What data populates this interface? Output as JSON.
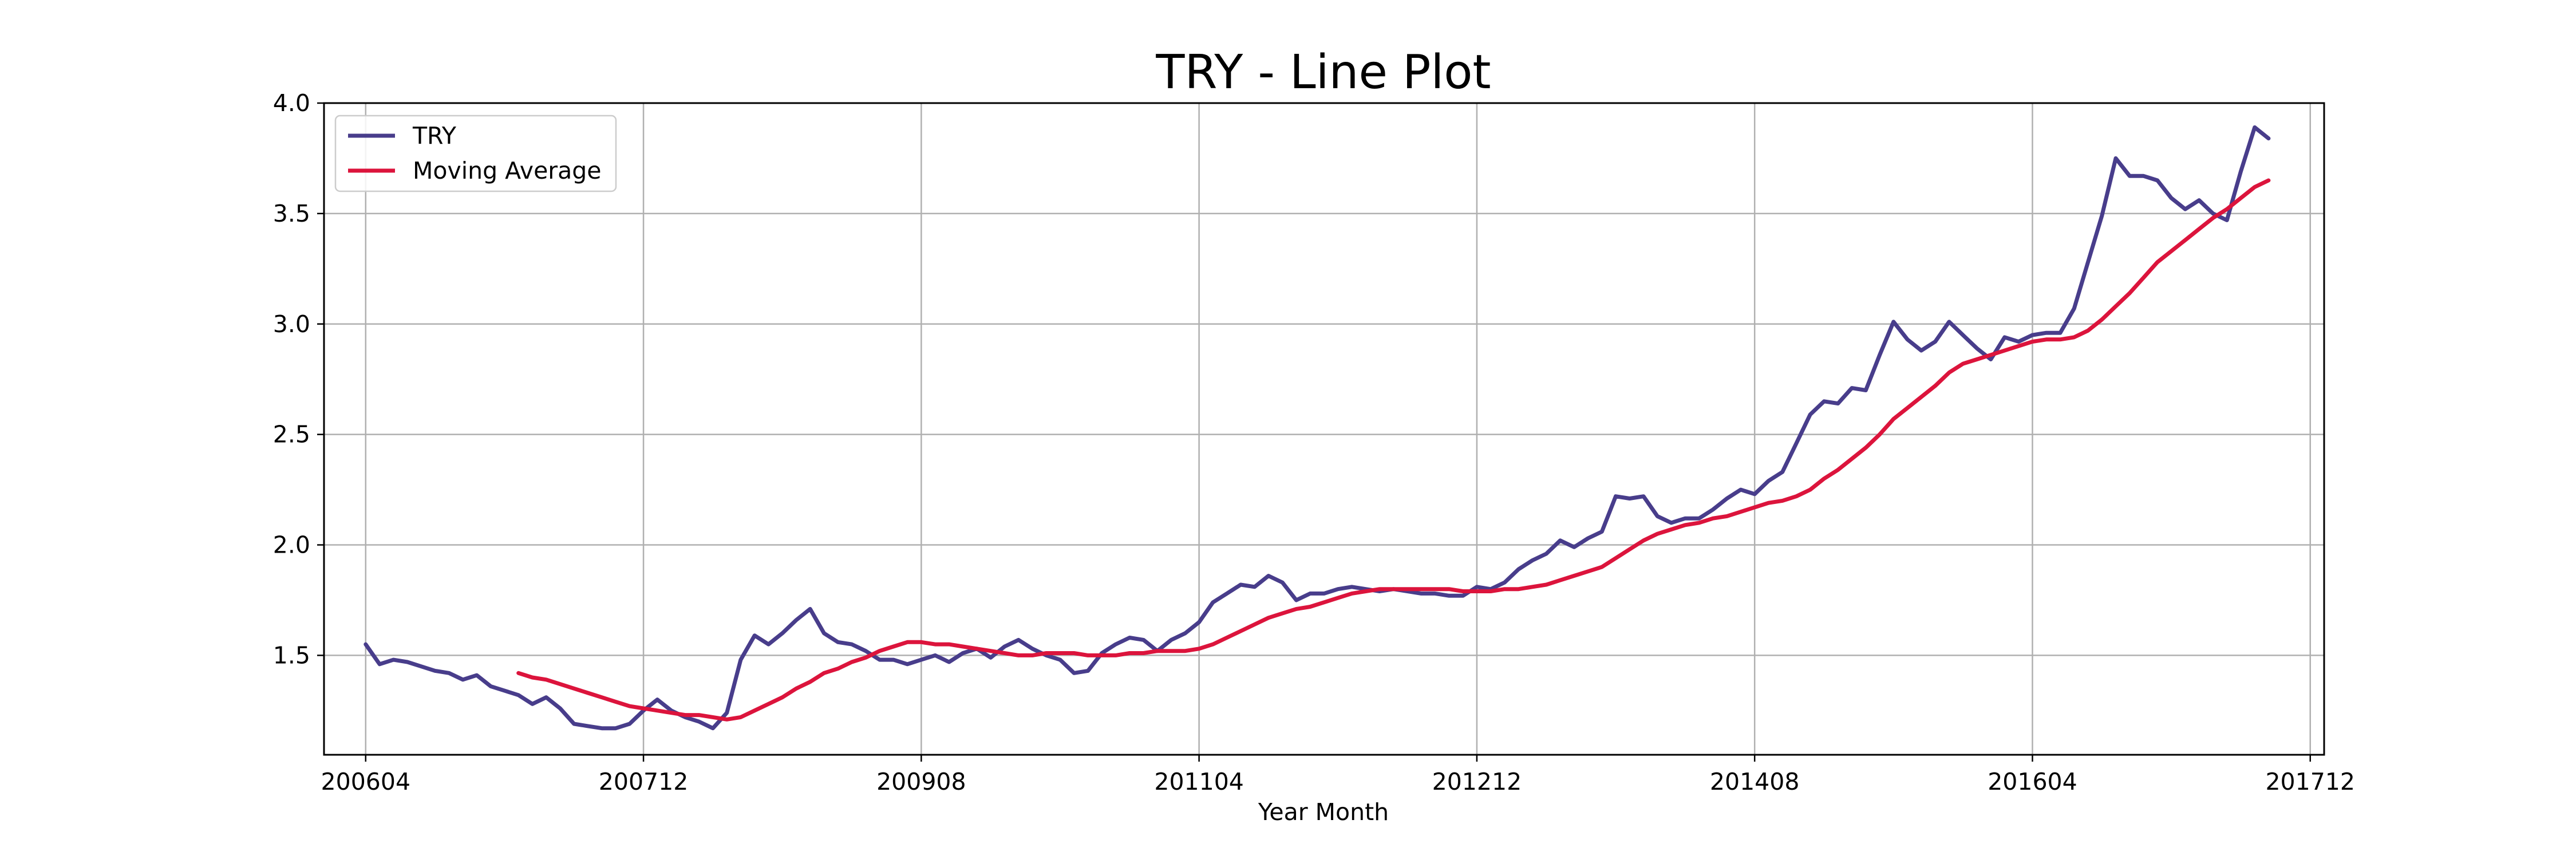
{
  "chart_data": {
    "type": "line",
    "title": "TRY - Line Plot",
    "xlabel": "Year Month",
    "ylabel": "",
    "xlim": [
      "2006-01",
      "2018-01"
    ],
    "ylim": [
      1.05,
      4.0
    ],
    "x_ticks": [
      "200604",
      "200712",
      "200908",
      "201104",
      "201212",
      "201408",
      "201604",
      "201712"
    ],
    "y_ticks": [
      1.5,
      2.0,
      2.5,
      3.0,
      3.5,
      4.0
    ],
    "y_tick_labels": [
      "1.5",
      "2.0",
      "2.5",
      "3.0",
      "3.5",
      "4.0"
    ],
    "grid": true,
    "legend_position": "top-left",
    "series": [
      {
        "name": "TRY",
        "color": "#483D8B",
        "points": [
          [
            "2006-04",
            1.55
          ],
          [
            "2006-05",
            1.46
          ],
          [
            "2006-06",
            1.48
          ],
          [
            "2006-07",
            1.47
          ],
          [
            "2006-08",
            1.45
          ],
          [
            "2006-09",
            1.43
          ],
          [
            "2006-10",
            1.42
          ],
          [
            "2006-11",
            1.39
          ],
          [
            "2006-12",
            1.41
          ],
          [
            "2007-01",
            1.36
          ],
          [
            "2007-02",
            1.34
          ],
          [
            "2007-03",
            1.32
          ],
          [
            "2007-04",
            1.28
          ],
          [
            "2007-05",
            1.31
          ],
          [
            "2007-06",
            1.26
          ],
          [
            "2007-07",
            1.19
          ],
          [
            "2007-08",
            1.18
          ],
          [
            "2007-09",
            1.17
          ],
          [
            "2007-10",
            1.17
          ],
          [
            "2007-11",
            1.19
          ],
          [
            "2007-12",
            1.25
          ],
          [
            "2008-01",
            1.3
          ],
          [
            "2008-02",
            1.25
          ],
          [
            "2008-03",
            1.22
          ],
          [
            "2008-04",
            1.2
          ],
          [
            "2008-05",
            1.17
          ],
          [
            "2008-06",
            1.24
          ],
          [
            "2008-07",
            1.48
          ],
          [
            "2008-08",
            1.59
          ],
          [
            "2008-09",
            1.55
          ],
          [
            "2008-10",
            1.6
          ],
          [
            "2008-11",
            1.66
          ],
          [
            "2008-12",
            1.71
          ],
          [
            "2009-01",
            1.6
          ],
          [
            "2009-02",
            1.56
          ],
          [
            "2009-03",
            1.55
          ],
          [
            "2009-04",
            1.52
          ],
          [
            "2009-05",
            1.48
          ],
          [
            "2009-06",
            1.48
          ],
          [
            "2009-07",
            1.46
          ],
          [
            "2009-08",
            1.48
          ],
          [
            "2009-09",
            1.5
          ],
          [
            "2009-10",
            1.47
          ],
          [
            "2009-11",
            1.51
          ],
          [
            "2009-12",
            1.53
          ],
          [
            "2010-01",
            1.49
          ],
          [
            "2010-02",
            1.54
          ],
          [
            "2010-03",
            1.57
          ],
          [
            "2010-04",
            1.53
          ],
          [
            "2010-05",
            1.5
          ],
          [
            "2010-06",
            1.48
          ],
          [
            "2010-07",
            1.42
          ],
          [
            "2010-08",
            1.43
          ],
          [
            "2010-09",
            1.51
          ],
          [
            "2010-10",
            1.55
          ],
          [
            "2010-11",
            1.58
          ],
          [
            "2010-12",
            1.57
          ],
          [
            "2011-01",
            1.52
          ],
          [
            "2011-02",
            1.57
          ],
          [
            "2011-03",
            1.6
          ],
          [
            "2011-04",
            1.65
          ],
          [
            "2011-05",
            1.74
          ],
          [
            "2011-06",
            1.78
          ],
          [
            "2011-07",
            1.82
          ],
          [
            "2011-08",
            1.81
          ],
          [
            "2011-09",
            1.86
          ],
          [
            "2011-10",
            1.83
          ],
          [
            "2011-11",
            1.75
          ],
          [
            "2011-12",
            1.78
          ],
          [
            "2012-01",
            1.78
          ],
          [
            "2012-02",
            1.8
          ],
          [
            "2012-03",
            1.81
          ],
          [
            "2012-04",
            1.8
          ],
          [
            "2012-05",
            1.79
          ],
          [
            "2012-06",
            1.8
          ],
          [
            "2012-07",
            1.79
          ],
          [
            "2012-08",
            1.78
          ],
          [
            "2012-09",
            1.78
          ],
          [
            "2012-10",
            1.77
          ],
          [
            "2012-11",
            1.77
          ],
          [
            "2012-12",
            1.81
          ],
          [
            "2013-01",
            1.8
          ],
          [
            "2013-02",
            1.83
          ],
          [
            "2013-03",
            1.89
          ],
          [
            "2013-04",
            1.93
          ],
          [
            "2013-05",
            1.96
          ],
          [
            "2013-06",
            2.02
          ],
          [
            "2013-07",
            1.99
          ],
          [
            "2013-08",
            2.03
          ],
          [
            "2013-09",
            2.06
          ],
          [
            "2013-10",
            2.22
          ],
          [
            "2013-11",
            2.21
          ],
          [
            "2013-12",
            2.22
          ],
          [
            "2014-01",
            2.13
          ],
          [
            "2014-02",
            2.1
          ],
          [
            "2014-03",
            2.12
          ],
          [
            "2014-04",
            2.12
          ],
          [
            "2014-05",
            2.16
          ],
          [
            "2014-06",
            2.21
          ],
          [
            "2014-07",
            2.25
          ],
          [
            "2014-08",
            2.23
          ],
          [
            "2014-09",
            2.29
          ],
          [
            "2014-10",
            2.33
          ],
          [
            "2014-11",
            2.46
          ],
          [
            "2014-12",
            2.59
          ],
          [
            "2015-01",
            2.65
          ],
          [
            "2015-02",
            2.64
          ],
          [
            "2015-03",
            2.71
          ],
          [
            "2015-04",
            2.7
          ],
          [
            "2015-05",
            2.86
          ],
          [
            "2015-06",
            3.01
          ],
          [
            "2015-07",
            2.93
          ],
          [
            "2015-08",
            2.88
          ],
          [
            "2015-09",
            2.92
          ],
          [
            "2015-10",
            3.01
          ],
          [
            "2015-11",
            2.95
          ],
          [
            "2015-12",
            2.89
          ],
          [
            "2016-01",
            2.84
          ],
          [
            "2016-02",
            2.94
          ],
          [
            "2016-03",
            2.92
          ],
          [
            "2016-04",
            2.95
          ],
          [
            "2016-05",
            2.96
          ],
          [
            "2016-06",
            2.96
          ],
          [
            "2016-07",
            3.07
          ],
          [
            "2016-08",
            3.28
          ],
          [
            "2016-09",
            3.49
          ],
          [
            "2016-10",
            3.75
          ],
          [
            "2016-11",
            3.67
          ],
          [
            "2016-12",
            3.67
          ],
          [
            "2017-01",
            3.65
          ],
          [
            "2017-02",
            3.57
          ],
          [
            "2017-03",
            3.52
          ],
          [
            "2017-04",
            3.56
          ],
          [
            "2017-05",
            3.5
          ],
          [
            "2017-06",
            3.47
          ],
          [
            "2017-07",
            3.69
          ],
          [
            "2017-08",
            3.89
          ],
          [
            "2017-09",
            3.84
          ]
        ]
      },
      {
        "name": "Moving Average",
        "color": "#DC143C",
        "points": [
          [
            "2007-03",
            1.42
          ],
          [
            "2007-04",
            1.4
          ],
          [
            "2007-05",
            1.39
          ],
          [
            "2007-06",
            1.37
          ],
          [
            "2007-07",
            1.35
          ],
          [
            "2007-08",
            1.33
          ],
          [
            "2007-09",
            1.31
          ],
          [
            "2007-10",
            1.29
          ],
          [
            "2007-11",
            1.27
          ],
          [
            "2007-12",
            1.26
          ],
          [
            "2008-01",
            1.25
          ],
          [
            "2008-02",
            1.24
          ],
          [
            "2008-03",
            1.23
          ],
          [
            "2008-04",
            1.23
          ],
          [
            "2008-05",
            1.22
          ],
          [
            "2008-06",
            1.21
          ],
          [
            "2008-07",
            1.22
          ],
          [
            "2008-08",
            1.25
          ],
          [
            "2008-09",
            1.28
          ],
          [
            "2008-10",
            1.31
          ],
          [
            "2008-11",
            1.35
          ],
          [
            "2008-12",
            1.38
          ],
          [
            "2009-01",
            1.42
          ],
          [
            "2009-02",
            1.44
          ],
          [
            "2009-03",
            1.47
          ],
          [
            "2009-04",
            1.49
          ],
          [
            "2009-05",
            1.52
          ],
          [
            "2009-06",
            1.54
          ],
          [
            "2009-07",
            1.56
          ],
          [
            "2009-08",
            1.56
          ],
          [
            "2009-09",
            1.55
          ],
          [
            "2009-10",
            1.55
          ],
          [
            "2009-11",
            1.54
          ],
          [
            "2009-12",
            1.53
          ],
          [
            "2010-01",
            1.52
          ],
          [
            "2010-02",
            1.51
          ],
          [
            "2010-03",
            1.5
          ],
          [
            "2010-04",
            1.5
          ],
          [
            "2010-05",
            1.51
          ],
          [
            "2010-06",
            1.51
          ],
          [
            "2010-07",
            1.51
          ],
          [
            "2010-08",
            1.5
          ],
          [
            "2010-09",
            1.5
          ],
          [
            "2010-10",
            1.5
          ],
          [
            "2010-11",
            1.51
          ],
          [
            "2010-12",
            1.51
          ],
          [
            "2011-01",
            1.52
          ],
          [
            "2011-02",
            1.52
          ],
          [
            "2011-03",
            1.52
          ],
          [
            "2011-04",
            1.53
          ],
          [
            "2011-05",
            1.55
          ],
          [
            "2011-06",
            1.58
          ],
          [
            "2011-07",
            1.61
          ],
          [
            "2011-08",
            1.64
          ],
          [
            "2011-09",
            1.67
          ],
          [
            "2011-10",
            1.69
          ],
          [
            "2011-11",
            1.71
          ],
          [
            "2011-12",
            1.72
          ],
          [
            "2012-01",
            1.74
          ],
          [
            "2012-02",
            1.76
          ],
          [
            "2012-03",
            1.78
          ],
          [
            "2012-04",
            1.79
          ],
          [
            "2012-05",
            1.8
          ],
          [
            "2012-06",
            1.8
          ],
          [
            "2012-07",
            1.8
          ],
          [
            "2012-08",
            1.8
          ],
          [
            "2012-09",
            1.8
          ],
          [
            "2012-10",
            1.8
          ],
          [
            "2012-11",
            1.79
          ],
          [
            "2012-12",
            1.79
          ],
          [
            "2013-01",
            1.79
          ],
          [
            "2013-02",
            1.8
          ],
          [
            "2013-03",
            1.8
          ],
          [
            "2013-04",
            1.81
          ],
          [
            "2013-05",
            1.82
          ],
          [
            "2013-06",
            1.84
          ],
          [
            "2013-07",
            1.86
          ],
          [
            "2013-08",
            1.88
          ],
          [
            "2013-09",
            1.9
          ],
          [
            "2013-10",
            1.94
          ],
          [
            "2013-11",
            1.98
          ],
          [
            "2013-12",
            2.02
          ],
          [
            "2014-01",
            2.05
          ],
          [
            "2014-02",
            2.07
          ],
          [
            "2014-03",
            2.09
          ],
          [
            "2014-04",
            2.1
          ],
          [
            "2014-05",
            2.12
          ],
          [
            "2014-06",
            2.13
          ],
          [
            "2014-07",
            2.15
          ],
          [
            "2014-08",
            2.17
          ],
          [
            "2014-09",
            2.19
          ],
          [
            "2014-10",
            2.2
          ],
          [
            "2014-11",
            2.22
          ],
          [
            "2014-12",
            2.25
          ],
          [
            "2015-01",
            2.3
          ],
          [
            "2015-02",
            2.34
          ],
          [
            "2015-03",
            2.39
          ],
          [
            "2015-04",
            2.44
          ],
          [
            "2015-05",
            2.5
          ],
          [
            "2015-06",
            2.57
          ],
          [
            "2015-07",
            2.62
          ],
          [
            "2015-08",
            2.67
          ],
          [
            "2015-09",
            2.72
          ],
          [
            "2015-10",
            2.78
          ],
          [
            "2015-11",
            2.82
          ],
          [
            "2015-12",
            2.84
          ],
          [
            "2016-01",
            2.86
          ],
          [
            "2016-02",
            2.88
          ],
          [
            "2016-03",
            2.9
          ],
          [
            "2016-04",
            2.92
          ],
          [
            "2016-05",
            2.93
          ],
          [
            "2016-06",
            2.93
          ],
          [
            "2016-07",
            2.94
          ],
          [
            "2016-08",
            2.97
          ],
          [
            "2016-09",
            3.02
          ],
          [
            "2016-10",
            3.08
          ],
          [
            "2016-11",
            3.14
          ],
          [
            "2016-12",
            3.21
          ],
          [
            "2017-01",
            3.28
          ],
          [
            "2017-02",
            3.33
          ],
          [
            "2017-03",
            3.38
          ],
          [
            "2017-04",
            3.43
          ],
          [
            "2017-05",
            3.48
          ],
          [
            "2017-06",
            3.52
          ],
          [
            "2017-07",
            3.57
          ],
          [
            "2017-08",
            3.62
          ],
          [
            "2017-09",
            3.65
          ]
        ]
      }
    ]
  }
}
